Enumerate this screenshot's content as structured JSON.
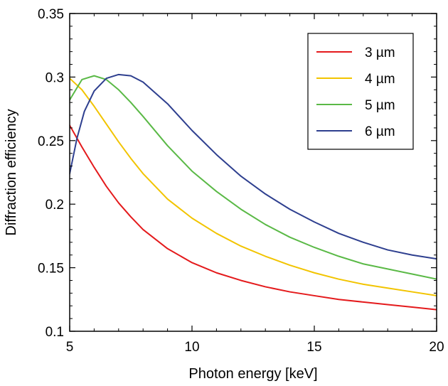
{
  "chart_data": {
    "type": "line",
    "title": "",
    "xlabel": "Photon energy [keV]",
    "ylabel": "Diffraction efficiency",
    "xlim": [
      5,
      20
    ],
    "ylim": [
      0.1,
      0.35
    ],
    "xticks": [
      5,
      10,
      15,
      20
    ],
    "xtick_labels": [
      "5",
      "10",
      "15",
      "20"
    ],
    "yticks": [
      0.1,
      0.15,
      0.2,
      0.25,
      0.3,
      0.35
    ],
    "ytick_labels": [
      "0.1",
      "0.15",
      "0.2",
      "0.25",
      "0.3",
      "0.35"
    ],
    "grid": false,
    "legend_position": "top-right",
    "series": [
      {
        "name": "3 µm",
        "color": "#e41a1c",
        "x": [
          5,
          5.5,
          6,
          6.5,
          7,
          7.5,
          8,
          9,
          10,
          11,
          12,
          13,
          14,
          15,
          16,
          17,
          18,
          19,
          20
        ],
        "y": [
          0.262,
          0.245,
          0.229,
          0.214,
          0.201,
          0.19,
          0.18,
          0.165,
          0.154,
          0.146,
          0.14,
          0.135,
          0.131,
          0.128,
          0.125,
          0.123,
          0.121,
          0.119,
          0.117
        ]
      },
      {
        "name": "4 µm",
        "color": "#f2c400",
        "x": [
          5,
          5.5,
          6,
          6.5,
          7,
          7.5,
          8,
          9,
          10,
          11,
          12,
          13,
          14,
          15,
          16,
          17,
          18,
          19,
          20
        ],
        "y": [
          0.299,
          0.29,
          0.277,
          0.263,
          0.249,
          0.236,
          0.224,
          0.204,
          0.189,
          0.177,
          0.167,
          0.159,
          0.152,
          0.146,
          0.141,
          0.137,
          0.134,
          0.131,
          0.128
        ]
      },
      {
        "name": "5 µm",
        "color": "#5ab946",
        "x": [
          5,
          5.5,
          6,
          6.5,
          7,
          7.5,
          8,
          9,
          10,
          11,
          12,
          13,
          14,
          15,
          16,
          17,
          18,
          19,
          20
        ],
        "y": [
          0.282,
          0.298,
          0.301,
          0.298,
          0.29,
          0.28,
          0.269,
          0.246,
          0.226,
          0.21,
          0.196,
          0.184,
          0.174,
          0.166,
          0.159,
          0.153,
          0.149,
          0.145,
          0.141
        ]
      },
      {
        "name": "6 µm",
        "color": "#2e3f8f",
        "x": [
          5,
          5.3,
          5.6,
          6,
          6.5,
          7,
          7.5,
          8,
          9,
          10,
          11,
          12,
          13,
          14,
          15,
          16,
          17,
          18,
          19,
          20
        ],
        "y": [
          0.224,
          0.252,
          0.273,
          0.289,
          0.299,
          0.302,
          0.301,
          0.296,
          0.279,
          0.258,
          0.239,
          0.222,
          0.208,
          0.196,
          0.186,
          0.177,
          0.17,
          0.164,
          0.16,
          0.157
        ]
      }
    ]
  }
}
